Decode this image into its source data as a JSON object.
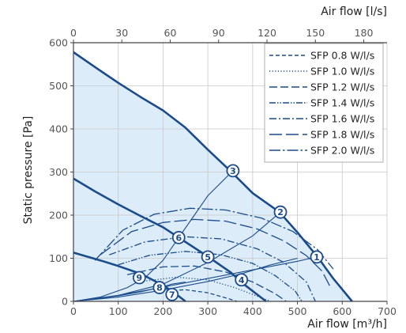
{
  "colors": {
    "curve": "#1a4c8c",
    "fill": "#dcecf8",
    "axis": "#444444",
    "grid": "#c8c8c8"
  },
  "chart_data": {
    "type": "line",
    "x_axis": {
      "label": "Air flow [m³/h]",
      "ticks": [
        0,
        100,
        200,
        300,
        400,
        500,
        600,
        700
      ],
      "range": [
        0,
        700
      ]
    },
    "x2_axis": {
      "label": "Air flow [l/s]",
      "ticks": [
        0,
        30,
        60,
        90,
        120,
        150,
        180
      ],
      "factor": 3.6
    },
    "y_axis": {
      "label": "Static pressure [Pa]",
      "ticks": [
        0,
        100,
        200,
        300,
        400,
        500,
        600
      ],
      "range": [
        0,
        600
      ]
    },
    "grid": true,
    "legend_position": "top-right",
    "fan_curves": [
      {
        "points": [
          [
            0,
            578
          ],
          [
            50,
            542
          ],
          [
            100,
            507
          ],
          [
            150,
            474
          ],
          [
            200,
            443
          ],
          [
            250,
            403
          ],
          [
            300,
            352
          ],
          [
            350,
            303
          ],
          [
            400,
            251
          ],
          [
            460,
            207
          ],
          [
            500,
            160
          ],
          [
            545,
            103
          ],
          [
            580,
            53
          ],
          [
            622,
            0
          ]
        ]
      },
      {
        "points": [
          [
            0,
            285
          ],
          [
            50,
            254
          ],
          [
            100,
            225
          ],
          [
            150,
            198
          ],
          [
            200,
            172
          ],
          [
            235,
            148
          ],
          [
            300,
            104
          ],
          [
            350,
            68
          ],
          [
            380,
            40
          ],
          [
            405,
            20
          ],
          [
            430,
            0
          ]
        ]
      },
      {
        "points": [
          [
            0,
            113
          ],
          [
            60,
            95
          ],
          [
            100,
            82
          ],
          [
            150,
            64
          ],
          [
            195,
            40
          ],
          [
            220,
            24
          ],
          [
            250,
            0
          ]
        ]
      }
    ],
    "sfp_series": [
      {
        "name": "SFP 0.8 W/l/s",
        "dash": "5,3",
        "points": [
          [
            180,
            23
          ],
          [
            250,
            27
          ],
          [
            300,
            20
          ],
          [
            340,
            8
          ],
          [
            365,
            0
          ]
        ]
      },
      {
        "name": "SFP 1.0 W/l/s",
        "dash": "1.2,2.4",
        "points": [
          [
            150,
            46
          ],
          [
            230,
            56
          ],
          [
            300,
            50
          ],
          [
            360,
            32
          ],
          [
            420,
            8
          ],
          [
            440,
            0
          ]
        ]
      },
      {
        "name": "SFP 1.2 W/l/s",
        "dash": "10,4",
        "points": [
          [
            120,
            62
          ],
          [
            200,
            80
          ],
          [
            270,
            82
          ],
          [
            340,
            68
          ],
          [
            400,
            45
          ],
          [
            450,
            18
          ],
          [
            475,
            0
          ]
        ]
      },
      {
        "name": "SFP 1.4 W/l/s",
        "dash": "8,2,1.5,2,1.5,2",
        "points": [
          [
            100,
            85
          ],
          [
            170,
            107
          ],
          [
            250,
            116
          ],
          [
            330,
            108
          ],
          [
            400,
            88
          ],
          [
            450,
            60
          ],
          [
            495,
            24
          ],
          [
            510,
            0
          ]
        ]
      },
      {
        "name": "SFP 1.6 W/l/s",
        "dash": "9,3,2,3",
        "points": [
          [
            80,
            108
          ],
          [
            160,
            138
          ],
          [
            250,
            150
          ],
          [
            330,
            145
          ],
          [
            410,
            122
          ],
          [
            470,
            90
          ],
          [
            520,
            45
          ],
          [
            540,
            0
          ]
        ]
      },
      {
        "name": "SFP 1.8 W/l/s",
        "dash": "16,5",
        "points": [
          [
            60,
            108
          ],
          [
            130,
            162
          ],
          [
            200,
            183
          ],
          [
            270,
            190
          ],
          [
            340,
            186
          ],
          [
            410,
            168
          ],
          [
            470,
            140
          ],
          [
            520,
            106
          ],
          [
            555,
            70
          ],
          [
            575,
            30
          ]
        ]
      },
      {
        "name": "SFP 2.0 W/l/s",
        "dash": "14,3,2.5,3",
        "points": [
          [
            48,
            95
          ],
          [
            110,
            165
          ],
          [
            180,
            202
          ],
          [
            260,
            216
          ],
          [
            340,
            212
          ],
          [
            420,
            193
          ],
          [
            490,
            162
          ],
          [
            545,
            120
          ],
          [
            580,
            75
          ]
        ]
      }
    ],
    "system_curves": [
      {
        "label_for": [
          1
        ],
        "points": [
          [
            0,
            0
          ],
          [
            100,
            14
          ],
          [
            200,
            33
          ],
          [
            300,
            53
          ],
          [
            400,
            73
          ],
          [
            500,
            93
          ],
          [
            543,
            103
          ]
        ]
      },
      {
        "label_for": [
          2
        ],
        "points": [
          [
            0,
            0
          ],
          [
            50,
            6
          ],
          [
            100,
            14
          ],
          [
            200,
            40
          ],
          [
            300,
            90
          ],
          [
            400,
            152
          ],
          [
            462,
            207
          ]
        ]
      },
      {
        "label_for": [
          3
        ],
        "points": [
          [
            0,
            0
          ],
          [
            60,
            10
          ],
          [
            120,
            32
          ],
          [
            160,
            55
          ],
          [
            200,
            95
          ],
          [
            235,
            148
          ],
          [
            270,
            200
          ],
          [
            300,
            245
          ],
          [
            356,
            303
          ]
        ]
      },
      {
        "label_for": [
          4,
          5,
          6
        ],
        "points": [
          [
            0,
            0
          ],
          [
            100,
            10
          ],
          [
            200,
            26
          ],
          [
            300,
            46
          ],
          [
            375,
            64
          ],
          [
            438,
            84
          ],
          [
            500,
            100
          ]
        ]
      },
      {
        "label_for": [
          7,
          8,
          9
        ],
        "points": [
          [
            0,
            0
          ],
          [
            50,
            6
          ],
          [
            100,
            13
          ],
          [
            150,
            22
          ],
          [
            200,
            34
          ],
          [
            220,
            40
          ],
          [
            250,
            45
          ]
        ]
      }
    ],
    "markers": [
      {
        "label": "1",
        "x": 543,
        "y": 103
      },
      {
        "label": "2",
        "x": 462,
        "y": 207
      },
      {
        "label": "3",
        "x": 356,
        "y": 303
      },
      {
        "label": "4",
        "x": 375,
        "y": 50
      },
      {
        "label": "5",
        "x": 300,
        "y": 103
      },
      {
        "label": "6",
        "x": 235,
        "y": 148
      },
      {
        "label": "7",
        "x": 220,
        "y": 16
      },
      {
        "label": "8",
        "x": 192,
        "y": 32
      },
      {
        "label": "9",
        "x": 147,
        "y": 55
      }
    ]
  }
}
